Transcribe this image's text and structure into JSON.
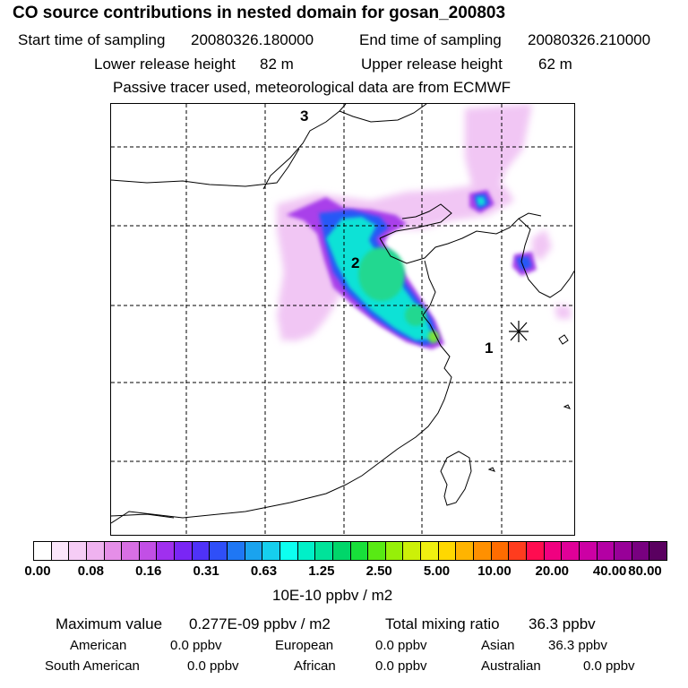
{
  "header": {
    "title": "CO  source contributions in nested domain for gosan_200803",
    "start_label": "Start time of sampling",
    "start_value": "20080326.180000",
    "end_label": "End time of sampling",
    "end_value": "20080326.210000",
    "lower_label": "Lower release height",
    "lower_value": "82 m",
    "upper_label": "Upper release height",
    "upper_value": "62 m",
    "note": "Passive tracer used, meteorological data are from ECMWF"
  },
  "map": {
    "labels": [
      "3",
      "2",
      "1"
    ],
    "receptor_icon": "asterisk-station-marker"
  },
  "colorbar": {
    "colors": [
      "#ffffff",
      "#fbe6fb",
      "#f6cdf6",
      "#efb2f0",
      "#e58ee8",
      "#d86fe4",
      "#c24fe6",
      "#a030ee",
      "#7a26f5",
      "#4f32f8",
      "#2f4ff8",
      "#1f77f4",
      "#1aa3ee",
      "#16cfee",
      "#0dfff0",
      "#00f0c8",
      "#00e39a",
      "#00d66a",
      "#18e03a",
      "#58ea14",
      "#96f008",
      "#ccf008",
      "#f0f010",
      "#ffd800",
      "#ffb400",
      "#ff9000",
      "#ff6c00",
      "#ff3c1e",
      "#ff0c50",
      "#f00080",
      "#e00098",
      "#cc00a4",
      "#b400a4",
      "#980098",
      "#780080",
      "#5a0060"
    ],
    "ticks": [
      "0.00",
      "0.08",
      "0.16",
      "0.31",
      "0.63",
      "1.25",
      "2.50",
      "5.00",
      "10.00",
      "20.00",
      "40.00",
      "80.00"
    ],
    "unit": "10E-10 ppbv / m2"
  },
  "stats": {
    "max_label": "Maximum value",
    "max_value": "0.277E-09 ppbv / m2",
    "total_label": "Total mixing ratio",
    "total_value": "36.3 ppbv",
    "regions": [
      {
        "name": "American",
        "value": "0.0 ppbv"
      },
      {
        "name": "European",
        "value": "0.0 ppbv"
      },
      {
        "name": "Asian",
        "value": "36.3 ppbv"
      },
      {
        "name": "South American",
        "value": "0.0 ppbv"
      },
      {
        "name": "African",
        "value": "0.0 ppbv"
      },
      {
        "name": "Australian",
        "value": "0.0 ppbv"
      }
    ]
  }
}
